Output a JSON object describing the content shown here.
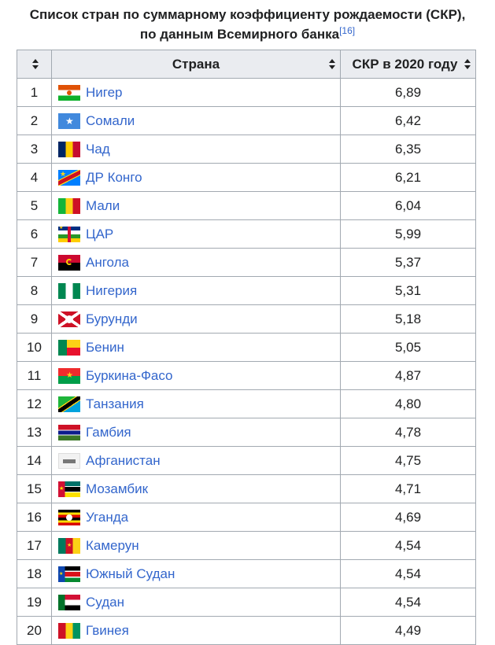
{
  "caption": {
    "line1": "Список стран по суммарному коэффициенту рождаемости (СКР),",
    "line2": "по данным Всемирного банка",
    "ref": "[16]"
  },
  "table": {
    "headers": [
      "",
      "Страна",
      "СКР в 2020 году"
    ],
    "rows": [
      {
        "rank": "1",
        "country": "Нигер",
        "tfr": "6,89",
        "flag": "niger-flag-icon"
      },
      {
        "rank": "2",
        "country": "Сомали",
        "tfr": "6,42",
        "flag": "somalia-flag-icon"
      },
      {
        "rank": "3",
        "country": "Чад",
        "tfr": "6,35",
        "flag": "chad-flag-icon"
      },
      {
        "rank": "4",
        "country": "ДР Конго",
        "tfr": "6,21",
        "flag": "dr-congo-flag-icon"
      },
      {
        "rank": "5",
        "country": "Мали",
        "tfr": "6,04",
        "flag": "mali-flag-icon"
      },
      {
        "rank": "6",
        "country": "ЦАР",
        "tfr": "5,99",
        "flag": "car-flag-icon"
      },
      {
        "rank": "7",
        "country": "Ангола",
        "tfr": "5,37",
        "flag": "angola-flag-icon"
      },
      {
        "rank": "8",
        "country": "Нигерия",
        "tfr": "5,31",
        "flag": "nigeria-flag-icon"
      },
      {
        "rank": "9",
        "country": "Бурунди",
        "tfr": "5,18",
        "flag": "burundi-flag-icon"
      },
      {
        "rank": "10",
        "country": "Бенин",
        "tfr": "5,05",
        "flag": "benin-flag-icon"
      },
      {
        "rank": "11",
        "country": "Буркина-Фасо",
        "tfr": "4,87",
        "flag": "burkina-faso-flag-icon"
      },
      {
        "rank": "12",
        "country": "Танзания",
        "tfr": "4,80",
        "flag": "tanzania-flag-icon"
      },
      {
        "rank": "13",
        "country": "Гамбия",
        "tfr": "4,78",
        "flag": "gambia-flag-icon"
      },
      {
        "rank": "14",
        "country": "Афганистан",
        "tfr": "4,75",
        "flag": "afghanistan-flag-icon"
      },
      {
        "rank": "15",
        "country": "Мозамбик",
        "tfr": "4,71",
        "flag": "mozambique-flag-icon"
      },
      {
        "rank": "16",
        "country": "Уганда",
        "tfr": "4,69",
        "flag": "uganda-flag-icon"
      },
      {
        "rank": "17",
        "country": "Камерун",
        "tfr": "4,54",
        "flag": "cameroon-flag-icon"
      },
      {
        "rank": "18",
        "country": "Южный Судан",
        "tfr": "4,54",
        "flag": "south-sudan-flag-icon"
      },
      {
        "rank": "19",
        "country": "Судан",
        "tfr": "4,54",
        "flag": "sudan-flag-icon"
      },
      {
        "rank": "20",
        "country": "Гвинея",
        "tfr": "4,49",
        "flag": "guinea-flag-icon"
      }
    ]
  },
  "colors": {
    "link": "#3366cc",
    "header_bg": "#eaecf0",
    "border": "#a2a9b1"
  }
}
